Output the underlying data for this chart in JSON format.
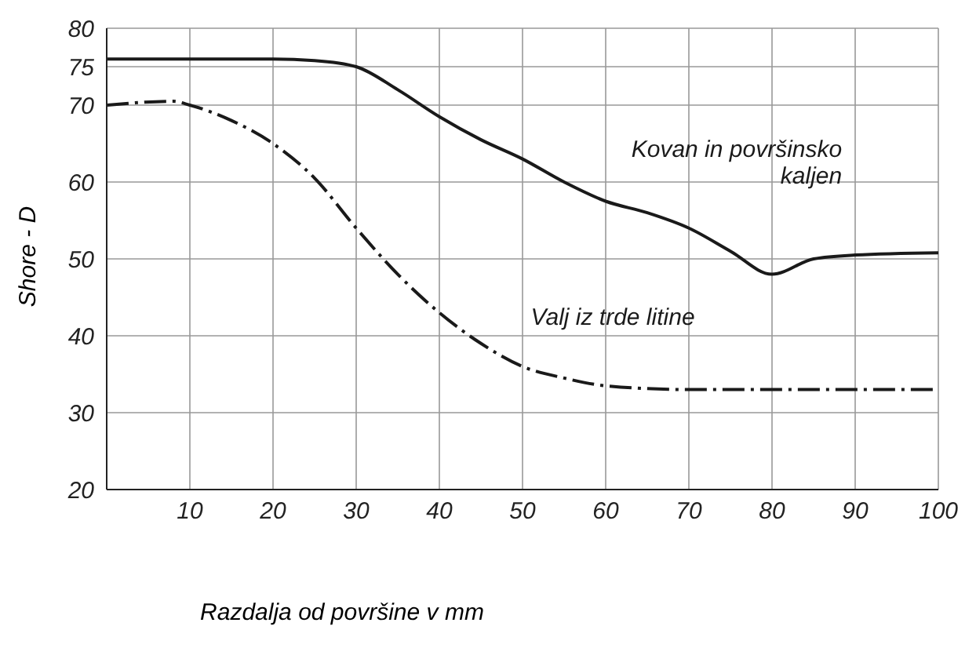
{
  "chart_data": {
    "type": "line",
    "xlabel": "Razdalja od površine v mm",
    "ylabel": "Shore - D",
    "xlim": [
      0,
      100
    ],
    "xticks": [
      10,
      20,
      30,
      40,
      50,
      60,
      70,
      80,
      90,
      100
    ],
    "ylim": [
      20,
      80
    ],
    "yticks": [
      20,
      30,
      40,
      50,
      60,
      70,
      75,
      80
    ],
    "grid": true,
    "legend": false,
    "marker": "none",
    "series": [
      {
        "name": "Kovan in površinsko kaljen",
        "color": "#1a1a1a",
        "line_style": "solid",
        "x": [
          0,
          10,
          20,
          25,
          30,
          35,
          40,
          45,
          50,
          55,
          60,
          65,
          70,
          75,
          80,
          85,
          90,
          100
        ],
        "values": [
          76,
          76,
          76,
          75.8,
          75,
          72,
          68.5,
          65.5,
          63,
          60,
          57.5,
          56,
          54,
          51,
          48,
          50,
          50.5,
          50.8
        ]
      },
      {
        "name": "Valj iz trde litine",
        "color": "#1a1a1a",
        "line_style": "dashdot",
        "x": [
          0,
          8,
          10,
          15,
          20,
          25,
          30,
          35,
          40,
          45,
          50,
          55,
          60,
          70,
          80,
          100
        ],
        "values": [
          70,
          70.5,
          70,
          68,
          65,
          60.5,
          54,
          48,
          43,
          39,
          36,
          34.5,
          33.5,
          33,
          33,
          33
        ]
      }
    ]
  }
}
